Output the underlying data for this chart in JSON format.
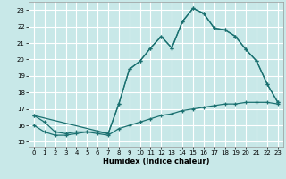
{
  "xlabel": "Humidex (Indice chaleur)",
  "background_color": "#c8e8e8",
  "grid_color": "#ffffff",
  "line_color": "#1a7070",
  "xlim": [
    -0.5,
    23.5
  ],
  "ylim": [
    14.7,
    23.5
  ],
  "xticks": [
    0,
    1,
    2,
    3,
    4,
    5,
    6,
    7,
    8,
    9,
    10,
    11,
    12,
    13,
    14,
    15,
    16,
    17,
    18,
    19,
    20,
    21,
    22,
    23
  ],
  "yticks": [
    15,
    16,
    17,
    18,
    19,
    20,
    21,
    22,
    23
  ],
  "line1_x": [
    0,
    1,
    2,
    3,
    4,
    5,
    6,
    7,
    8,
    9,
    10,
    11,
    12,
    13,
    14,
    15,
    16,
    17,
    18,
    19,
    20,
    21,
    22,
    23
  ],
  "line1_y": [
    16.6,
    16.2,
    15.6,
    15.5,
    15.6,
    15.6,
    15.6,
    15.5,
    17.3,
    19.4,
    19.9,
    20.7,
    21.4,
    20.7,
    22.3,
    23.1,
    22.8,
    21.9,
    21.8,
    21.4,
    20.6,
    19.9,
    18.5,
    17.4
  ],
  "line2_x": [
    0,
    7,
    8,
    9,
    10,
    11,
    12,
    13,
    14,
    15,
    16,
    17,
    18,
    19,
    20,
    21,
    22,
    23
  ],
  "line2_y": [
    16.6,
    15.5,
    17.3,
    19.4,
    19.9,
    20.7,
    21.4,
    20.7,
    22.3,
    23.1,
    22.8,
    21.9,
    21.8,
    21.4,
    20.6,
    19.9,
    18.5,
    17.4
  ],
  "line3_x": [
    0,
    1,
    2,
    3,
    4,
    5,
    6,
    7,
    8,
    9,
    10,
    11,
    12,
    13,
    14,
    15,
    16,
    17,
    18,
    19,
    20,
    21,
    22,
    23
  ],
  "line3_y": [
    16.0,
    15.6,
    15.4,
    15.4,
    15.5,
    15.6,
    15.5,
    15.4,
    15.8,
    16.0,
    16.2,
    16.4,
    16.6,
    16.7,
    16.9,
    17.0,
    17.1,
    17.2,
    17.3,
    17.3,
    17.4,
    17.4,
    17.4,
    17.3
  ]
}
